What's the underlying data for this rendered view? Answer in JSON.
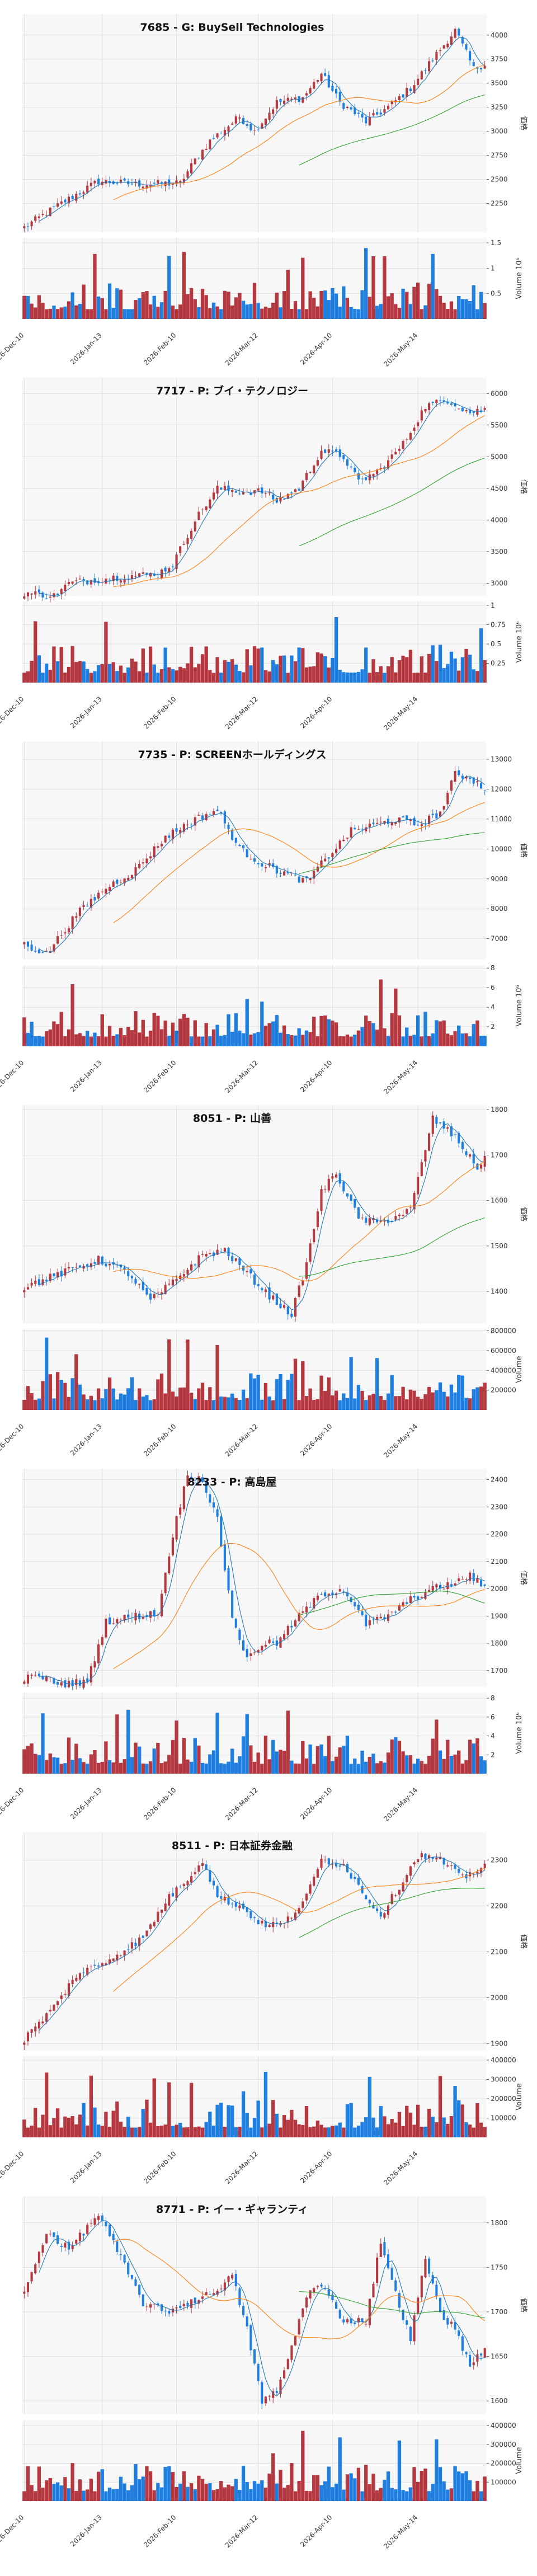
{
  "colors": {
    "up": "#b5373f",
    "down": "#1f7fe0",
    "ma_short": "#1f77b4",
    "ma_mid": "#ff7f0e",
    "ma_long": "#2ca02c",
    "panel_bg": "#f7f7f7",
    "grid": "#d9d9d9"
  },
  "x_tick_labels": [
    "2026-Dec-10",
    "2026-Jan-13",
    "2026-Feb-10",
    "2026-Mar-12",
    "2026-Apr-10",
    "2026-May-14"
  ],
  "price_axis_label": "価格",
  "chart_data": [
    {
      "type": "candlestick",
      "title": "7685 - G: BuySell Technologies",
      "price_ticks": [
        2250,
        2500,
        2750,
        3000,
        3250,
        3500,
        3750,
        4000
      ],
      "ylim": [
        1950,
        4220
      ],
      "volume_ticks": [
        0.5,
        1.0,
        1.5
      ],
      "volume_ylim": [
        0,
        1.6
      ],
      "volume_label": "Volume 10^6",
      "keypoints": [
        [
          0,
          2000
        ],
        [
          10,
          2250
        ],
        [
          20,
          2480
        ],
        [
          30,
          2450
        ],
        [
          42,
          2460
        ],
        [
          46,
          2700
        ],
        [
          50,
          2900
        ],
        [
          58,
          3150
        ],
        [
          62,
          3000
        ],
        [
          68,
          3300
        ],
        [
          75,
          3350
        ],
        [
          80,
          3600
        ],
        [
          85,
          3300
        ],
        [
          92,
          3100
        ],
        [
          98,
          3250
        ],
        [
          104,
          3450
        ],
        [
          110,
          3750
        ],
        [
          116,
          4050
        ],
        [
          121,
          3650
        ],
        [
          124,
          3700
        ]
      ]
    },
    {
      "type": "candlestick",
      "title": "7717 - P: ブイ・テクノロジー",
      "price_ticks": [
        3000,
        3500,
        4000,
        4500,
        5000,
        5500,
        6000
      ],
      "ylim": [
        2800,
        6250
      ],
      "volume_ticks": [
        0.25,
        0.5,
        0.75,
        1.0
      ],
      "volume_ylim": [
        0,
        1.05
      ],
      "volume_label": "Volume 10^6",
      "keypoints": [
        [
          0,
          2850
        ],
        [
          8,
          2800
        ],
        [
          12,
          3000
        ],
        [
          25,
          3100
        ],
        [
          36,
          3150
        ],
        [
          40,
          3300
        ],
        [
          46,
          4000
        ],
        [
          52,
          4500
        ],
        [
          58,
          4450
        ],
        [
          64,
          4450
        ],
        [
          68,
          4300
        ],
        [
          74,
          4500
        ],
        [
          80,
          5100
        ],
        [
          86,
          5000
        ],
        [
          90,
          4600
        ],
        [
          96,
          4800
        ],
        [
          102,
          5200
        ],
        [
          108,
          5800
        ],
        [
          114,
          5900
        ],
        [
          120,
          5700
        ],
        [
          124,
          5750
        ]
      ]
    },
    {
      "type": "candlestick",
      "title": "7735 - P: SCREENホールディングス",
      "price_ticks": [
        7000,
        8000,
        9000,
        10000,
        11000,
        12000,
        13000
      ],
      "ylim": [
        6300,
        13600
      ],
      "volume_ticks": [
        2,
        4,
        6,
        8
      ],
      "volume_ylim": [
        0,
        8.3
      ],
      "volume_label": "Volume 10^6",
      "keypoints": [
        [
          0,
          6800
        ],
        [
          6,
          6500
        ],
        [
          14,
          7800
        ],
        [
          22,
          8700
        ],
        [
          30,
          9300
        ],
        [
          38,
          10400
        ],
        [
          46,
          11000
        ],
        [
          52,
          11300
        ],
        [
          58,
          10000
        ],
        [
          64,
          9500
        ],
        [
          70,
          9200
        ],
        [
          76,
          8900
        ],
        [
          80,
          9500
        ],
        [
          88,
          10600
        ],
        [
          94,
          10800
        ],
        [
          100,
          11000
        ],
        [
          106,
          10800
        ],
        [
          112,
          11200
        ],
        [
          116,
          12500
        ],
        [
          120,
          12400
        ],
        [
          124,
          12000
        ]
      ]
    },
    {
      "type": "candlestick",
      "title": "8051 - P: 山善",
      "price_ticks": [
        1400,
        1500,
        1600,
        1700,
        1800
      ],
      "ylim": [
        1330,
        1810
      ],
      "volume_ticks": [
        200000,
        400000,
        600000,
        800000
      ],
      "volume_ylim": [
        0,
        820000
      ],
      "volume_label": "Volume",
      "keypoints": [
        [
          0,
          1410
        ],
        [
          10,
          1440
        ],
        [
          20,
          1470
        ],
        [
          28,
          1440
        ],
        [
          34,
          1380
        ],
        [
          40,
          1420
        ],
        [
          48,
          1480
        ],
        [
          54,
          1490
        ],
        [
          60,
          1440
        ],
        [
          66,
          1390
        ],
        [
          72,
          1350
        ],
        [
          76,
          1460
        ],
        [
          80,
          1620
        ],
        [
          84,
          1660
        ],
        [
          90,
          1560
        ],
        [
          96,
          1550
        ],
        [
          104,
          1580
        ],
        [
          110,
          1780
        ],
        [
          116,
          1740
        ],
        [
          122,
          1670
        ],
        [
          124,
          1700
        ]
      ]
    },
    {
      "type": "candlestick",
      "title": "8233 - P: 高島屋",
      "price_ticks": [
        1700,
        1800,
        1900,
        2000,
        2100,
        2200,
        2300,
        2400
      ],
      "ylim": [
        1640,
        2440
      ],
      "volume_ticks": [
        2,
        4,
        6,
        8
      ],
      "volume_ylim": [
        0,
        8.6
      ],
      "volume_label": "Volume 10^6",
      "keypoints": [
        [
          0,
          1670
        ],
        [
          4,
          1680
        ],
        [
          10,
          1650
        ],
        [
          17,
          1660
        ],
        [
          22,
          1880
        ],
        [
          30,
          1900
        ],
        [
          36,
          1910
        ],
        [
          40,
          2200
        ],
        [
          44,
          2420
        ],
        [
          48,
          2400
        ],
        [
          52,
          2250
        ],
        [
          56,
          1900
        ],
        [
          60,
          1740
        ],
        [
          64,
          1800
        ],
        [
          68,
          1800
        ],
        [
          74,
          1900
        ],
        [
          80,
          1980
        ],
        [
          86,
          2000
        ],
        [
          92,
          1870
        ],
        [
          98,
          1900
        ],
        [
          104,
          1960
        ],
        [
          110,
          2000
        ],
        [
          116,
          2020
        ],
        [
          120,
          2050
        ],
        [
          124,
          2000
        ]
      ]
    },
    {
      "type": "candlestick",
      "title": "8511 - P: 日本証券金融",
      "price_ticks": [
        1900,
        2000,
        2100,
        2200,
        2300
      ],
      "ylim": [
        1885,
        2360
      ],
      "volume_ticks": [
        100000,
        200000,
        300000,
        400000
      ],
      "volume_ylim": [
        0,
        420000
      ],
      "volume_label": "Volume",
      "keypoints": [
        [
          0,
          1910
        ],
        [
          8,
          1980
        ],
        [
          14,
          2050
        ],
        [
          20,
          2070
        ],
        [
          26,
          2100
        ],
        [
          32,
          2130
        ],
        [
          38,
          2210
        ],
        [
          44,
          2260
        ],
        [
          48,
          2300
        ],
        [
          52,
          2220
        ],
        [
          58,
          2200
        ],
        [
          64,
          2160
        ],
        [
          70,
          2160
        ],
        [
          76,
          2220
        ],
        [
          80,
          2300
        ],
        [
          86,
          2290
        ],
        [
          92,
          2220
        ],
        [
          96,
          2180
        ],
        [
          100,
          2230
        ],
        [
          106,
          2310
        ],
        [
          112,
          2300
        ],
        [
          118,
          2260
        ],
        [
          124,
          2290
        ]
      ]
    },
    {
      "type": "candlestick",
      "title": "8771 - P: イー・ギャランティ",
      "price_ticks": [
        1600,
        1650,
        1700,
        1750,
        1800
      ],
      "ylim": [
        1585,
        1830
      ],
      "volume_ticks": [
        100000,
        200000,
        300000,
        400000
      ],
      "volume_ylim": [
        0,
        430000
      ],
      "volume_label": "Volume",
      "keypoints": [
        [
          0,
          1720
        ],
        [
          6,
          1790
        ],
        [
          12,
          1770
        ],
        [
          20,
          1810
        ],
        [
          26,
          1760
        ],
        [
          32,
          1710
        ],
        [
          38,
          1700
        ],
        [
          44,
          1710
        ],
        [
          50,
          1720
        ],
        [
          56,
          1740
        ],
        [
          60,
          1680
        ],
        [
          64,
          1600
        ],
        [
          68,
          1610
        ],
        [
          72,
          1660
        ],
        [
          76,
          1720
        ],
        [
          80,
          1730
        ],
        [
          86,
          1690
        ],
        [
          92,
          1690
        ],
        [
          96,
          1780
        ],
        [
          100,
          1720
        ],
        [
          104,
          1670
        ],
        [
          108,
          1760
        ],
        [
          112,
          1700
        ],
        [
          116,
          1680
        ],
        [
          120,
          1640
        ],
        [
          124,
          1660
        ]
      ]
    }
  ]
}
